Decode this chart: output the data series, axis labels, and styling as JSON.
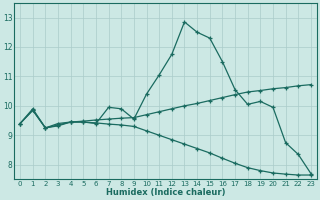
{
  "xlabel": "Humidex (Indice chaleur)",
  "ylabel": "",
  "bg_color": "#cce8e4",
  "grid_color": "#aaccca",
  "line_color": "#1a6b60",
  "xlim": [
    -0.5,
    23.5
  ],
  "ylim": [
    7.5,
    13.5
  ],
  "xticks": [
    0,
    1,
    2,
    3,
    4,
    5,
    6,
    7,
    8,
    9,
    10,
    11,
    12,
    13,
    14,
    15,
    16,
    17,
    18,
    19,
    20,
    21,
    22,
    23
  ],
  "yticks": [
    8,
    9,
    10,
    11,
    12,
    13
  ],
  "curve1_x": [
    0,
    1,
    2,
    3,
    4,
    5,
    6,
    7,
    8,
    9,
    10,
    11,
    12,
    13,
    14,
    15,
    16,
    17,
    18,
    19,
    20,
    21,
    22,
    23
  ],
  "curve1_y": [
    9.4,
    9.9,
    9.25,
    9.4,
    9.45,
    9.45,
    9.4,
    9.95,
    9.9,
    9.55,
    10.4,
    11.05,
    11.75,
    12.85,
    12.5,
    12.3,
    11.5,
    10.55,
    10.05,
    10.15,
    9.95,
    8.75,
    8.35,
    7.7
  ],
  "curve2_x": [
    0,
    1,
    2,
    3,
    4,
    5,
    6,
    7,
    8,
    9,
    10,
    11,
    12,
    13,
    14,
    15,
    16,
    17,
    18,
    19,
    20,
    21,
    22,
    23
  ],
  "curve2_y": [
    9.4,
    9.85,
    9.25,
    9.35,
    9.45,
    9.48,
    9.52,
    9.55,
    9.58,
    9.6,
    9.7,
    9.8,
    9.9,
    10.0,
    10.08,
    10.18,
    10.28,
    10.38,
    10.47,
    10.52,
    10.58,
    10.62,
    10.68,
    10.72
  ],
  "curve3_x": [
    0,
    1,
    2,
    3,
    4,
    5,
    6,
    7,
    8,
    9,
    10,
    11,
    12,
    13,
    14,
    15,
    16,
    17,
    18,
    19,
    20,
    21,
    22,
    23
  ],
  "curve3_y": [
    9.4,
    9.85,
    9.25,
    9.32,
    9.45,
    9.45,
    9.42,
    9.38,
    9.35,
    9.3,
    9.15,
    9.0,
    8.85,
    8.7,
    8.55,
    8.4,
    8.22,
    8.05,
    7.9,
    7.8,
    7.72,
    7.68,
    7.65,
    7.65
  ]
}
